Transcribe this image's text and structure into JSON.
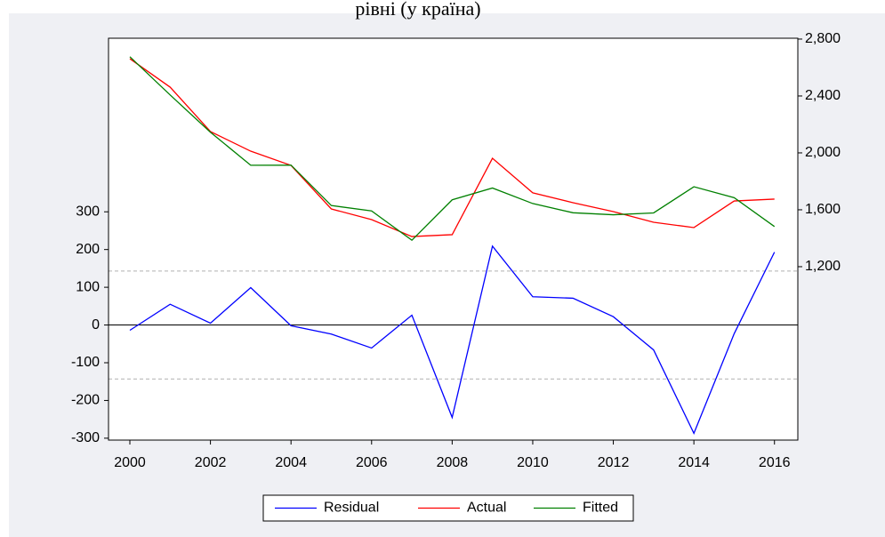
{
  "chart_data": {
    "type": "line",
    "title": "рівні (у країна)",
    "x": [
      2000,
      2001,
      2002,
      2003,
      2004,
      2005,
      2006,
      2007,
      2008,
      2009,
      2010,
      2011,
      2012,
      2013,
      2014,
      2015,
      2016
    ],
    "xlim": [
      1999.47,
      2016.58
    ],
    "xticks": [
      2000,
      2002,
      2004,
      2006,
      2008,
      2010,
      2012,
      2014,
      2016
    ],
    "ylim": [
      -305,
      760
    ],
    "yticks": [
      -300,
      -200,
      -100,
      0,
      100,
      200,
      300
    ],
    "y2lim": [
      -19,
      2806
    ],
    "y2ticks": [
      {
        "value": 1200,
        "label": "1,200"
      },
      {
        "value": 1600,
        "label": "1,600"
      },
      {
        "value": 2000,
        "label": "2,000"
      },
      {
        "value": 2400,
        "label": "2,400"
      },
      {
        "value": 2800,
        "label": "2,800"
      }
    ],
    "hlines": [
      {
        "value": 0,
        "color": "#000000",
        "dash": false
      },
      {
        "value": 143,
        "color": "#b0b0b0",
        "dash": true
      },
      {
        "value": -143,
        "color": "#b0b0b0",
        "dash": true
      }
    ],
    "series": [
      {
        "name": "Residual",
        "color": "#0000ff",
        "axis": "y",
        "values": [
          -14,
          55,
          5,
          99,
          -2,
          -24,
          -61,
          26,
          -245,
          209,
          75,
          71,
          22,
          -66,
          -287,
          -23,
          193
        ]
      },
      {
        "name": "Actual",
        "color": "#ff0000",
        "axis": "y2",
        "values": [
          2662,
          2462,
          2150,
          2012,
          1912,
          1606,
          1531,
          1412,
          1425,
          1962,
          1719,
          1650,
          1587,
          1512,
          1475,
          1662,
          1675
        ]
      },
      {
        "name": "Fitted",
        "color": "#008000",
        "axis": "y2",
        "values": [
          2676,
          2407,
          2145,
          1913,
          1914,
          1630,
          1592,
          1386,
          1670,
          1753,
          1644,
          1579,
          1565,
          1578,
          1762,
          1685,
          1482
        ]
      }
    ],
    "legend": "bottom"
  }
}
